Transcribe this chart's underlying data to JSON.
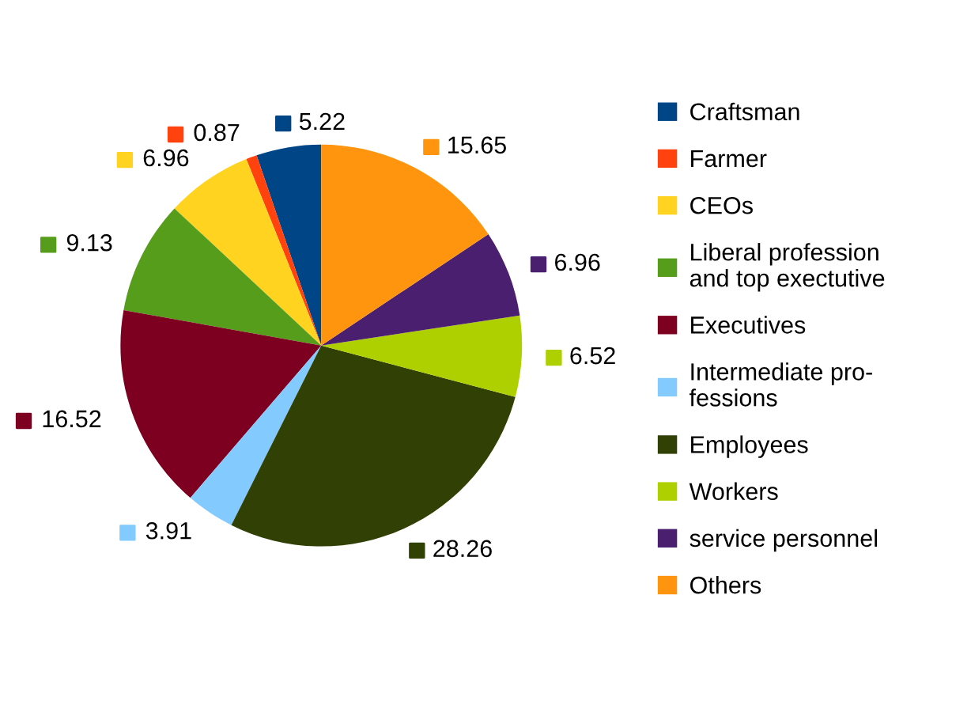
{
  "chart_data": {
    "type": "pie",
    "categories": [
      "Craftsman",
      "Farmer",
      "CEOs",
      "Liberal profession\nand top exectutive",
      "Executives",
      "Intermediate pro-\nfessions",
      "Employees",
      "Workers",
      "service personnel",
      "Others"
    ],
    "values": [
      5.22,
      0.87,
      6.96,
      9.13,
      16.52,
      3.91,
      28.26,
      6.52,
      6.96,
      15.65
    ],
    "colors": [
      "#004586",
      "#ff420e",
      "#ffd320",
      "#579d1c",
      "#7e0021",
      "#83caff",
      "#314004",
      "#aecf00",
      "#4b1f6f",
      "#ff950e"
    ],
    "data_labels": true,
    "legend": "right"
  }
}
